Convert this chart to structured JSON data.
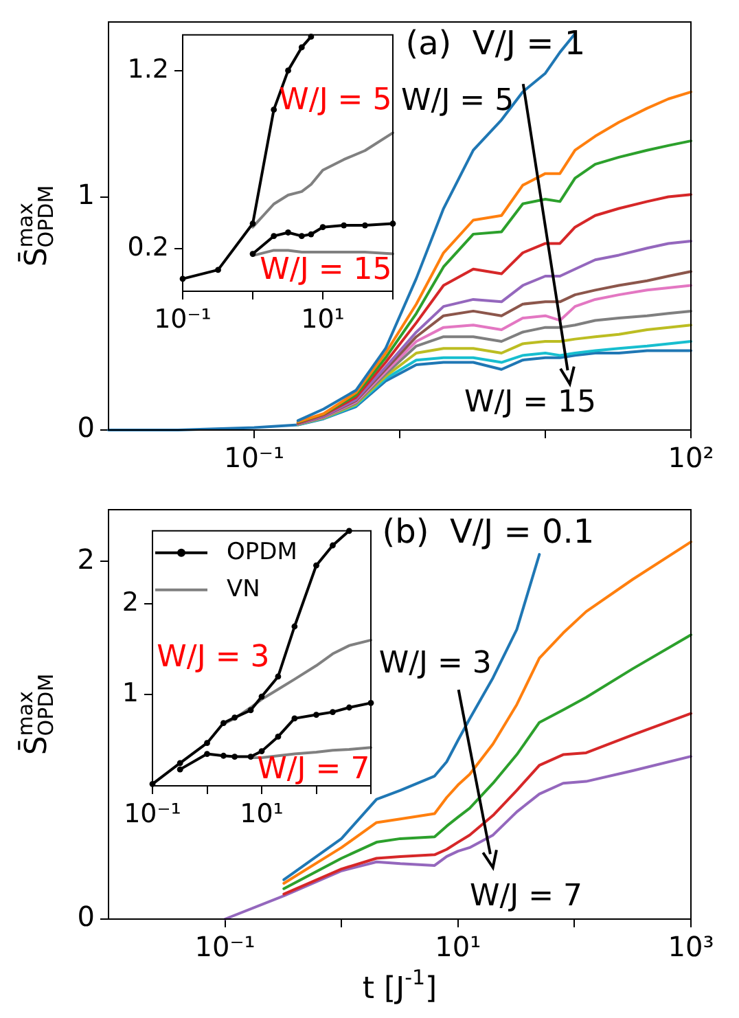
{
  "chart_data": [
    {
      "type": "line",
      "ylabel": "S̄$^{max}$$_{OPDM}$",
      "log": "x",
      "grid": false,
      "legend": false,
      "xlim": [
        0.01,
        100
      ],
      "xticks": [
        {
          "value": 0.1,
          "label": "10⁻¹"
        },
        {
          "value": 1,
          "label": null
        },
        {
          "value": 10,
          "label": null
        },
        {
          "value": 100,
          "label": "10²"
        }
      ],
      "ylim": [
        0,
        1.75
      ],
      "yticks": [
        0,
        1
      ],
      "annotations": [
        "(a)  V/J = 1",
        "W/J = 5",
        "W/J = 15"
      ],
      "x": [
        0.01,
        0.03,
        0.1,
        0.2,
        0.3,
        0.5,
        0.8,
        1.3,
        2,
        3.2,
        5,
        7,
        10,
        12.6,
        16,
        22,
        32,
        50,
        70,
        100
      ],
      "series": [
        {
          "color": "#1f77b4",
          "values": [
            null,
            null,
            null,
            0.04,
            0.09,
            0.17,
            0.35,
            0.65,
            0.95,
            1.2,
            1.33,
            1.45,
            1.53,
            1.62,
            1.7,
            null,
            null,
            null,
            null,
            null
          ]
        },
        {
          "color": "#ff7f0e",
          "values": [
            null,
            null,
            null,
            0.035,
            0.07,
            0.16,
            0.33,
            0.54,
            0.76,
            0.9,
            0.92,
            1.05,
            1.1,
            1.1,
            1.2,
            1.26,
            1.32,
            1.38,
            1.42,
            1.45
          ]
        },
        {
          "color": "#2ca02c",
          "values": [
            null,
            null,
            null,
            0.033,
            0.068,
            0.15,
            0.31,
            0.5,
            0.7,
            0.84,
            0.85,
            0.97,
            0.99,
            0.98,
            1.08,
            1.14,
            1.17,
            1.2,
            1.22,
            1.24
          ]
        },
        {
          "color": "#d62728",
          "values": [
            null,
            null,
            null,
            0.03,
            0.065,
            0.14,
            0.29,
            0.46,
            0.62,
            0.69,
            0.67,
            0.76,
            0.8,
            0.8,
            0.87,
            0.92,
            0.95,
            0.98,
            1.0,
            1.01
          ]
        },
        {
          "color": "#9467bd",
          "values": [
            null,
            null,
            null,
            0.028,
            0.06,
            0.13,
            0.27,
            0.42,
            0.53,
            0.56,
            0.55,
            0.62,
            0.66,
            0.66,
            0.69,
            0.73,
            0.75,
            0.78,
            0.8,
            0.81
          ]
        },
        {
          "color": "#8c564b",
          "values": [
            null,
            null,
            null,
            0.027,
            0.058,
            0.125,
            0.26,
            0.4,
            0.49,
            0.51,
            0.49,
            0.54,
            0.55,
            0.55,
            0.58,
            0.6,
            0.62,
            0.64,
            0.66,
            0.68
          ]
        },
        {
          "color": "#e377c2",
          "values": [
            null,
            null,
            null,
            0.026,
            0.056,
            0.12,
            0.25,
            0.38,
            0.44,
            0.45,
            0.43,
            0.48,
            0.49,
            0.47,
            0.53,
            0.56,
            0.58,
            0.6,
            0.61,
            0.62
          ]
        },
        {
          "color": "#7f7f7f",
          "values": [
            null,
            null,
            null,
            0.025,
            0.054,
            0.115,
            0.24,
            0.36,
            0.4,
            0.4,
            0.38,
            0.42,
            0.44,
            0.44,
            0.45,
            0.47,
            0.48,
            0.49,
            0.5,
            0.51
          ]
        },
        {
          "color": "#bcbd22",
          "values": [
            null,
            null,
            null,
            0.024,
            0.052,
            0.11,
            0.23,
            0.33,
            0.35,
            0.35,
            0.33,
            0.37,
            0.38,
            0.38,
            0.39,
            0.4,
            0.41,
            0.43,
            0.44,
            0.45
          ]
        },
        {
          "color": "#17becf",
          "values": [
            null,
            null,
            null,
            0.023,
            0.05,
            0.105,
            0.22,
            0.3,
            0.31,
            0.31,
            0.29,
            0.32,
            0.33,
            0.32,
            0.33,
            0.34,
            0.35,
            0.36,
            0.37,
            0.38
          ]
        },
        {
          "color": "#1f77b4",
          "values": [
            0,
            0,
            0.01,
            0.022,
            0.048,
            0.1,
            0.21,
            0.28,
            0.29,
            0.29,
            0.26,
            0.3,
            0.31,
            0.31,
            0.32,
            0.33,
            0.33,
            0.34,
            0.34,
            0.34
          ]
        }
      ]
    },
    {
      "type": "line",
      "log": "x",
      "grid": false,
      "legend": false,
      "xlim": [
        0.1,
        100
      ],
      "xticks": [
        {
          "value": 0.1,
          "label": "10⁻¹"
        },
        {
          "value": 1,
          "label": null
        },
        {
          "value": 10,
          "label": "10¹"
        },
        {
          "value": 100,
          "label": null
        }
      ],
      "ylim": [
        -0.04,
        1.4
      ],
      "yticks": [
        0.2,
        1.2
      ],
      "annotations": [
        "W/J = 5",
        "W/J = 15"
      ],
      "x": [
        0.1,
        0.32,
        1,
        2,
        3.2,
        5,
        6.8,
        10,
        20,
        40,
        100
      ],
      "series": [
        {
          "color": "#000000",
          "marker": "circle",
          "values": [
            0.03,
            0.08,
            0.34,
            0.98,
            1.2,
            1.33,
            1.39,
            null,
            null,
            null,
            null
          ]
        },
        {
          "color": "#808080",
          "values": [
            null,
            null,
            0.32,
            0.45,
            0.5,
            0.52,
            0.56,
            0.64,
            0.7,
            0.75,
            0.85
          ]
        },
        {
          "color": "#000000",
          "marker": "circle",
          "values": [
            null,
            null,
            0.17,
            0.27,
            0.29,
            0.27,
            0.28,
            0.32,
            0.33,
            0.33,
            0.34
          ]
        },
        {
          "color": "#808080",
          "values": [
            null,
            null,
            0.16,
            0.19,
            0.19,
            0.18,
            0.18,
            0.18,
            0.18,
            0.18,
            0.17
          ]
        }
      ]
    },
    {
      "type": "line",
      "ylabel": "S̄$^{max}$$_{OPDM}$",
      "xlabel": "t [J$^{-1}$]",
      "log": "x",
      "grid": false,
      "legend": false,
      "xlim": [
        0.01,
        1000
      ],
      "xticks": [
        {
          "value": 0.1,
          "label": "10⁻¹"
        },
        {
          "value": 1,
          "label": null
        },
        {
          "value": 10,
          "label": "10¹"
        },
        {
          "value": 100,
          "label": null
        },
        {
          "value": 1000,
          "label": "10³"
        }
      ],
      "ylim": [
        0,
        2.29
      ],
      "yticks": [
        0,
        2
      ],
      "annotations": [
        "(b)  V/J = 0.1",
        "W/J = 3",
        "W/J = 7"
      ],
      "x": [
        0.1,
        0.32,
        1,
        2,
        3.2,
        6.3,
        8,
        10,
        12.6,
        20,
        32,
        50,
        80,
        126,
        316,
        1000
      ],
      "series": [
        {
          "color": "#1f77b4",
          "values": [
            null,
            0.22,
            0.45,
            0.67,
            0.72,
            0.8,
            0.88,
            1.0,
            1.12,
            1.35,
            1.62,
            2.04,
            null,
            null,
            null,
            null
          ]
        },
        {
          "color": "#ff7f0e",
          "values": [
            null,
            0.2,
            0.4,
            0.54,
            0.56,
            0.59,
            0.68,
            0.75,
            0.81,
            0.98,
            1.2,
            1.46,
            1.6,
            1.72,
            1.9,
            2.11
          ]
        },
        {
          "color": "#2ca02c",
          "values": [
            null,
            0.17,
            0.34,
            0.43,
            0.45,
            0.46,
            0.52,
            0.57,
            0.62,
            0.76,
            0.92,
            1.1,
            1.17,
            1.24,
            1.4,
            1.59
          ]
        },
        {
          "color": "#d62728",
          "values": [
            null,
            0.14,
            0.28,
            0.34,
            0.35,
            0.36,
            0.39,
            0.43,
            0.47,
            0.58,
            0.72,
            0.86,
            0.92,
            0.93,
            1.03,
            1.15
          ]
        },
        {
          "color": "#9467bd",
          "values": [
            0,
            0.13,
            0.27,
            0.32,
            0.31,
            0.3,
            0.35,
            0.38,
            0.4,
            0.47,
            0.6,
            0.7,
            0.76,
            0.77,
            0.83,
            0.91
          ]
        }
      ]
    },
    {
      "type": "line",
      "log": "x",
      "grid": false,
      "legend": "top left",
      "xlim": [
        0.1,
        1000
      ],
      "xticks": [
        {
          "value": 0.1,
          "label": "10⁻¹"
        },
        {
          "value": 1,
          "label": null
        },
        {
          "value": 10,
          "label": "10¹"
        },
        {
          "value": 100,
          "label": null
        },
        {
          "value": 1000,
          "label": null
        }
      ],
      "ylim": [
        0,
        2.8
      ],
      "yticks": [
        1,
        2
      ],
      "annotations": [
        "W/J = 3",
        "W/J = 7"
      ],
      "x": [
        0.1,
        0.32,
        1,
        2,
        3.2,
        6.3,
        10,
        20,
        40,
        100,
        200,
        400,
        1000
      ],
      "series": [
        {
          "name": "OPDM",
          "color": "#000000",
          "marker": "circle",
          "values": [
            0.02,
            0.25,
            0.47,
            0.69,
            0.75,
            0.83,
            0.98,
            1.2,
            1.75,
            2.42,
            2.64,
            2.8,
            null
          ]
        },
        {
          "name": "VN",
          "color": "#808080",
          "values": [
            null,
            null,
            null,
            0.68,
            0.74,
            0.86,
            0.95,
            1.06,
            1.17,
            1.32,
            1.45,
            1.54,
            1.6
          ]
        },
        {
          "color": "#000000",
          "marker": "circle",
          "values": [
            null,
            0.18,
            0.35,
            0.33,
            0.32,
            0.32,
            0.38,
            0.54,
            0.74,
            0.78,
            0.81,
            0.86,
            0.91
          ]
        },
        {
          "color": "#808080",
          "values": [
            null,
            null,
            null,
            null,
            null,
            0.31,
            0.31,
            0.33,
            0.35,
            0.37,
            0.39,
            0.4,
            0.42
          ]
        }
      ]
    }
  ]
}
